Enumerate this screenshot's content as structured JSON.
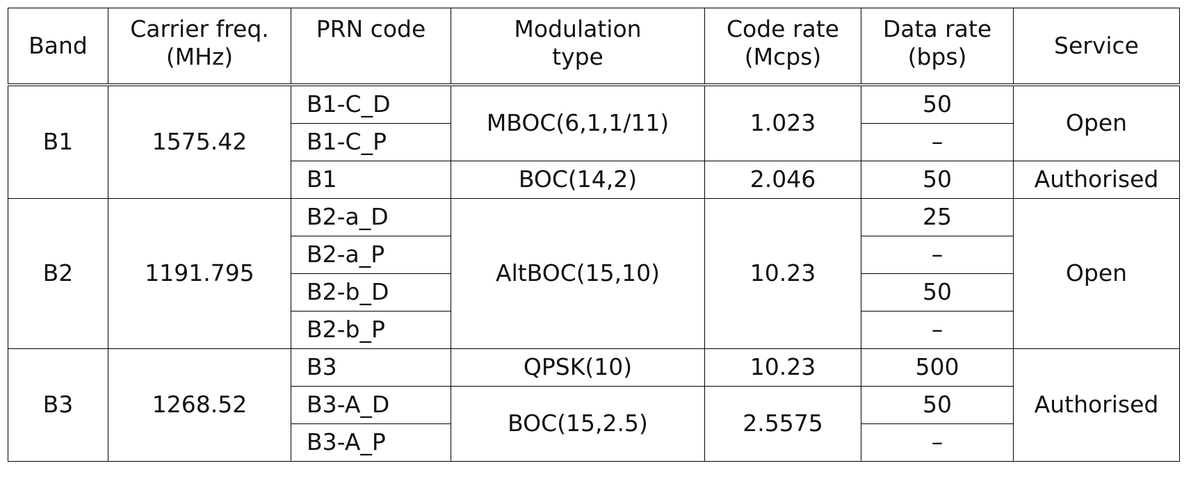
{
  "table": {
    "header": [
      [
        "Band"
      ],
      [
        "Carrier freq.",
        "(MHz)"
      ],
      [
        "PRN code"
      ],
      [
        "Modulation",
        "type"
      ],
      [
        "Code rate",
        "(Mcps)"
      ],
      [
        "Data rate",
        "(bps)"
      ],
      [
        "Service"
      ]
    ],
    "bands": [
      {
        "band": "B1",
        "carrier_freq": "1575.42",
        "prn_codes": [
          "B1-C_D",
          "B1-C_P",
          "B1"
        ],
        "modulation": [
          "MBOC(6,1,1/11)",
          "BOC(14,2)"
        ],
        "code_rate": [
          "1.023",
          "2.046"
        ],
        "data_rate": [
          "50",
          "–",
          "50"
        ],
        "service": [
          "Open",
          "Authorised"
        ]
      },
      {
        "band": "B2",
        "carrier_freq": "1191.795",
        "prn_codes": [
          "B2-a_D",
          "B2-a_P",
          "B2-b_D",
          "B2-b_P"
        ],
        "modulation": [
          "AltBOC(15,10)"
        ],
        "code_rate": [
          "10.23"
        ],
        "data_rate": [
          "25",
          "–",
          "50",
          "–"
        ],
        "service": [
          "Open"
        ]
      },
      {
        "band": "B3",
        "carrier_freq": "1268.52",
        "prn_codes": [
          "B3",
          "B3-A_D",
          "B3-A_P"
        ],
        "modulation": [
          "QPSK(10)",
          "BOC(15,2.5)"
        ],
        "code_rate": [
          "10.23",
          "2.5575"
        ],
        "data_rate": [
          "500",
          "50",
          "–"
        ],
        "service": [
          "Authorised"
        ]
      }
    ]
  }
}
